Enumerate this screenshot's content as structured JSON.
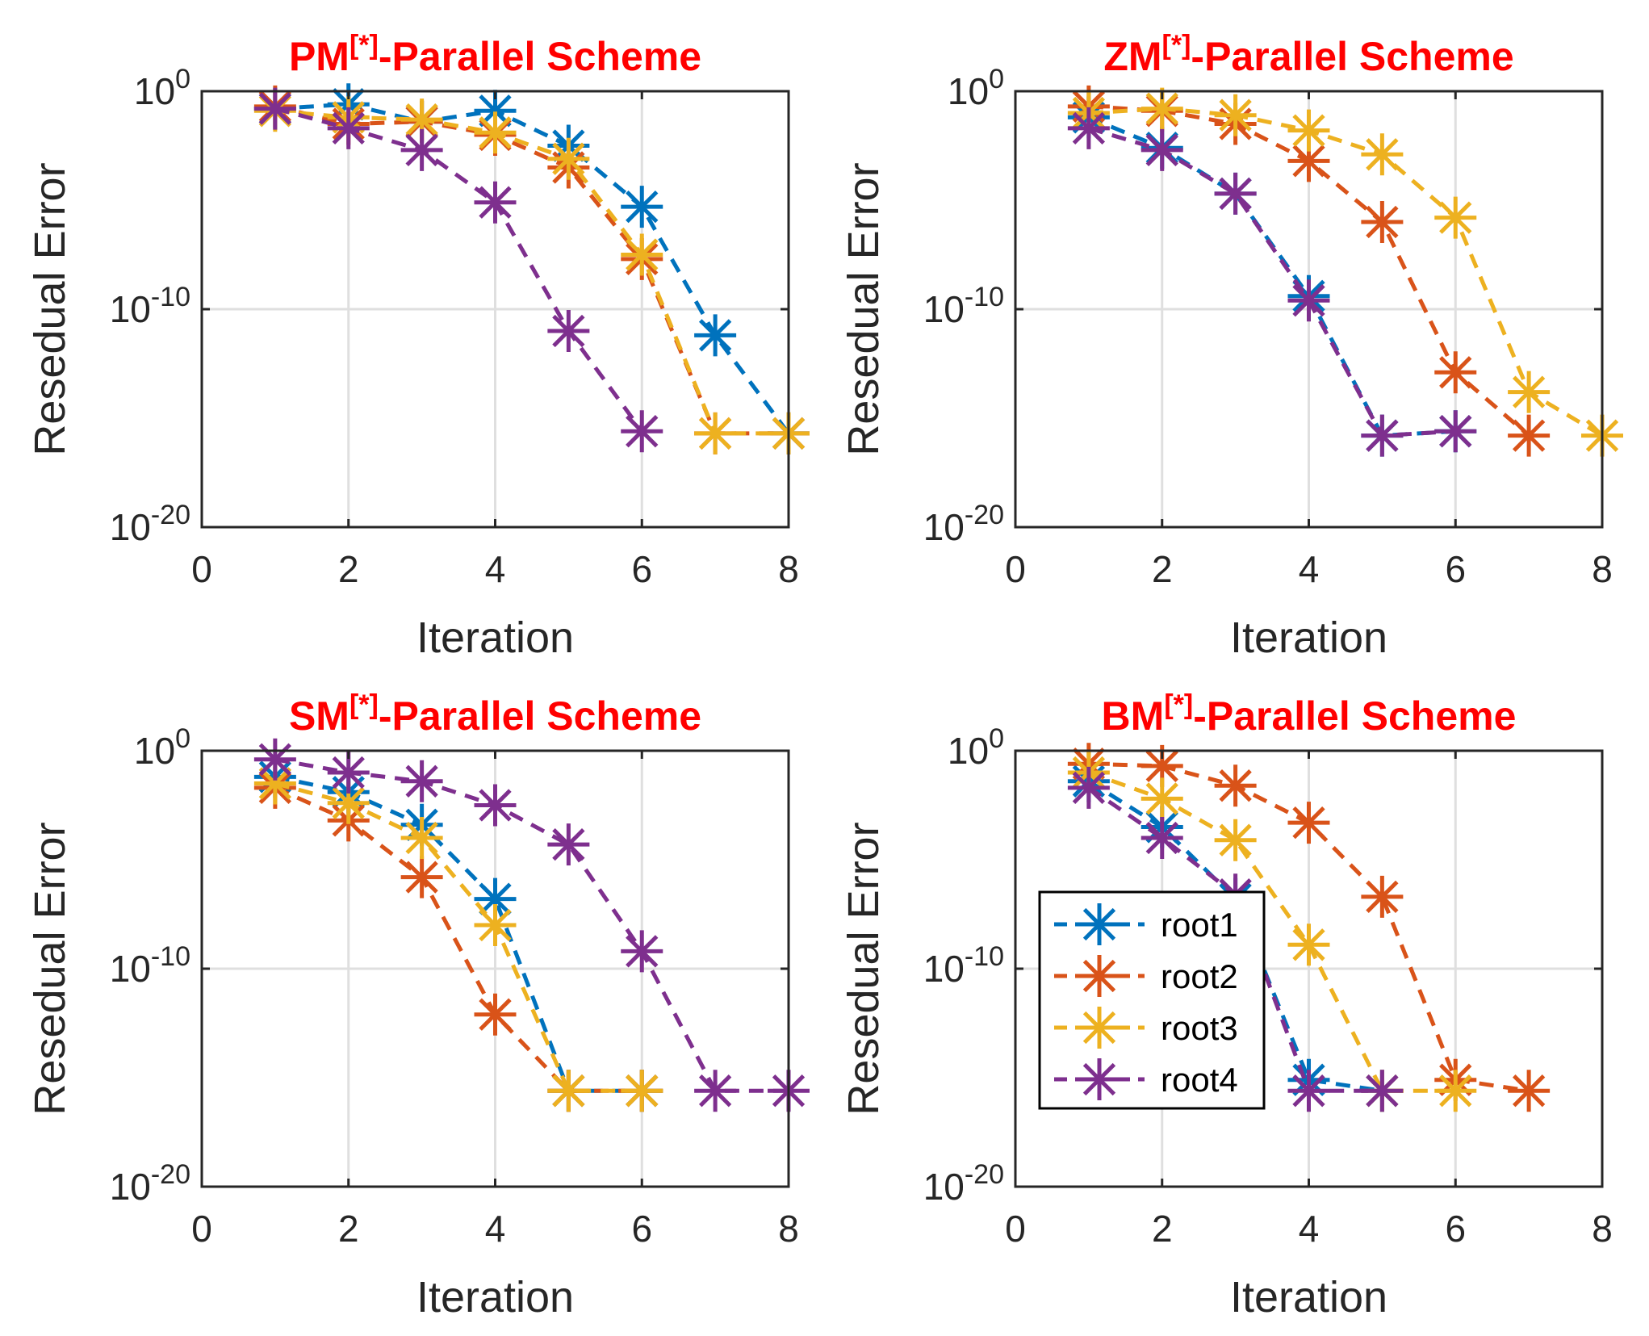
{
  "figure": {
    "series_colors": [
      "#0072BD",
      "#D95319",
      "#EDB120",
      "#7E2F8E"
    ],
    "title_color": "#ff0000"
  },
  "chart_data": [
    {
      "type": "line",
      "title_main": "PM",
      "title_sup": "[*]",
      "title_rest": "-Parallel Scheme",
      "xlabel": "Iteration",
      "ylabel": "Resedual Error",
      "xlim": [
        0,
        8
      ],
      "ylim_exp": [
        -20,
        0
      ],
      "y_scale": "log",
      "grid": true,
      "xticks": [
        "0",
        "2",
        "4",
        "6",
        "8"
      ],
      "ytick_base": "10",
      "ytick_exps": [
        "0",
        "-10",
        "-20"
      ],
      "series": [
        {
          "name": "root1",
          "x": [
            1,
            2,
            3,
            4,
            5,
            6,
            7,
            8
          ],
          "log10_y": [
            -0.8,
            -0.6,
            -1.4,
            -0.9,
            -2.5,
            -5.3,
            -11.2,
            -15.7
          ]
        },
        {
          "name": "root2",
          "x": [
            1,
            2,
            3,
            4,
            5,
            6,
            7,
            8
          ],
          "log10_y": [
            -0.7,
            -1.5,
            -1.4,
            -2.0,
            -3.5,
            -7.7,
            -15.7,
            -15.7
          ]
        },
        {
          "name": "root3",
          "x": [
            1,
            2,
            3,
            4,
            5,
            6,
            7,
            8
          ],
          "log10_y": [
            -0.9,
            -1.2,
            -1.3,
            -1.9,
            -3.1,
            -7.5,
            -15.7,
            -15.7
          ]
        },
        {
          "name": "root4",
          "x": [
            1,
            2,
            3,
            4,
            5,
            6
          ],
          "log10_y": [
            -0.8,
            -1.7,
            -2.7,
            -5.1,
            -11.0,
            -15.6
          ]
        }
      ]
    },
    {
      "type": "line",
      "title_main": "ZM",
      "title_sup": "[*]",
      "title_rest": "-Parallel Scheme",
      "xlabel": "Iteration",
      "ylabel": "Resedual Error",
      "xlim": [
        0,
        8
      ],
      "ylim_exp": [
        -20,
        0
      ],
      "y_scale": "log",
      "grid": true,
      "xticks": [
        "0",
        "2",
        "4",
        "6",
        "8"
      ],
      "ytick_base": "10",
      "ytick_exps": [
        "0",
        "-10",
        "-20"
      ],
      "series": [
        {
          "name": "root1",
          "x": [
            1,
            2,
            3,
            4,
            5,
            6
          ],
          "log10_y": [
            -1.2,
            -2.6,
            -4.7,
            -9.4,
            -15.8,
            -15.6
          ]
        },
        {
          "name": "root2",
          "x": [
            1,
            2,
            3,
            4,
            5,
            6,
            7
          ],
          "log10_y": [
            -0.7,
            -0.9,
            -1.5,
            -3.2,
            -6.0,
            -12.9,
            -15.8
          ]
        },
        {
          "name": "root3",
          "x": [
            1,
            2,
            3,
            4,
            5,
            6,
            7,
            8
          ],
          "log10_y": [
            -1.0,
            -0.8,
            -1.1,
            -1.8,
            -2.9,
            -5.8,
            -13.8,
            -15.8
          ]
        },
        {
          "name": "root4",
          "x": [
            1,
            2,
            3,
            4,
            5,
            6
          ],
          "log10_y": [
            -1.7,
            -2.7,
            -4.7,
            -9.6,
            -15.8,
            -15.6
          ]
        }
      ]
    },
    {
      "type": "line",
      "title_main": "SM",
      "title_sup": "[*]",
      "title_rest": "-Parallel Scheme",
      "xlabel": "Iteration",
      "ylabel": "Resedual Error",
      "xlim": [
        0,
        8
      ],
      "ylim_exp": [
        -20,
        0
      ],
      "y_scale": "log",
      "grid": true,
      "xticks": [
        "0",
        "2",
        "4",
        "6",
        "8"
      ],
      "ytick_base": "10",
      "ytick_exps": [
        "0",
        "-10",
        "-20"
      ],
      "series": [
        {
          "name": "root1",
          "x": [
            1,
            2,
            3,
            4,
            5,
            6
          ],
          "log10_y": [
            -1.2,
            -1.9,
            -3.4,
            -6.8,
            -15.6,
            -15.6
          ]
        },
        {
          "name": "root2",
          "x": [
            1,
            2,
            3,
            4,
            5,
            6
          ],
          "log10_y": [
            -1.7,
            -3.2,
            -5.8,
            -12.1,
            -15.6,
            -15.6
          ]
        },
        {
          "name": "root3",
          "x": [
            1,
            2,
            3,
            4,
            5,
            6
          ],
          "log10_y": [
            -1.5,
            -2.4,
            -4.0,
            -8.0,
            -15.6,
            -15.6
          ]
        },
        {
          "name": "root4",
          "x": [
            1,
            2,
            3,
            4,
            5,
            6,
            7,
            8
          ],
          "log10_y": [
            -0.4,
            -1.0,
            -1.4,
            -2.5,
            -4.3,
            -9.2,
            -15.6,
            -15.6
          ]
        }
      ]
    },
    {
      "type": "line",
      "title_main": "BM",
      "title_sup": "[*]",
      "title_rest": "-Parallel Scheme",
      "xlabel": "Iteration",
      "ylabel": "Resedual Error",
      "xlim": [
        0,
        8
      ],
      "ylim_exp": [
        -20,
        0
      ],
      "y_scale": "log",
      "grid": true,
      "xticks": [
        "0",
        "2",
        "4",
        "6",
        "8"
      ],
      "ytick_base": "10",
      "ytick_exps": [
        "0",
        "-10",
        "-20"
      ],
      "legend_position": "bottom-left",
      "series": [
        {
          "name": "root1",
          "x": [
            1,
            2,
            3,
            4,
            5
          ],
          "log10_y": [
            -1.4,
            -3.5,
            -6.8,
            -15.1,
            -15.6
          ]
        },
        {
          "name": "root2",
          "x": [
            1,
            2,
            3,
            4,
            5,
            6,
            7
          ],
          "log10_y": [
            -0.6,
            -0.7,
            -1.6,
            -3.3,
            -6.7,
            -15.1,
            -15.6
          ]
        },
        {
          "name": "root3",
          "x": [
            1,
            2,
            3,
            4,
            5,
            6
          ],
          "log10_y": [
            -1.0,
            -2.2,
            -4.1,
            -8.9,
            -15.6,
            -15.6
          ]
        },
        {
          "name": "root4",
          "x": [
            1,
            2,
            3,
            4,
            5
          ],
          "log10_y": [
            -1.7,
            -4.0,
            -6.6,
            -15.6,
            -15.6
          ]
        }
      ]
    }
  ]
}
